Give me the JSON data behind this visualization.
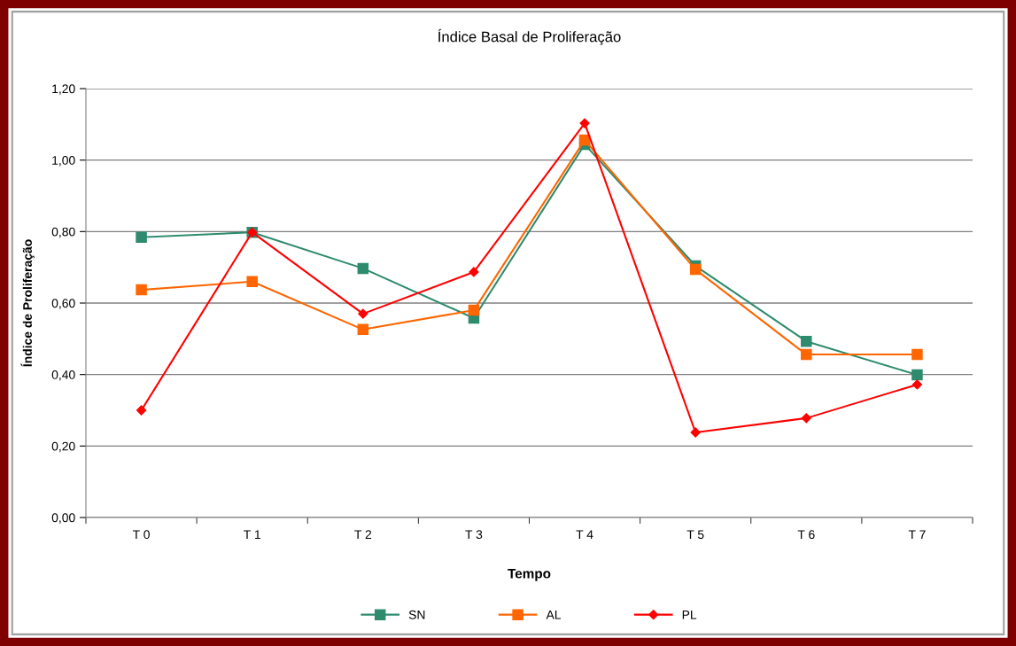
{
  "chart_data": {
    "type": "line",
    "title": "Índice Basal de Proliferação",
    "xlabel": "Tempo",
    "ylabel": "Índice de Proliferação",
    "categories": [
      "T 0",
      "T 1",
      "T 2",
      "T 3",
      "T 4",
      "T 5",
      "T 6",
      "T 7"
    ],
    "series": [
      {
        "name": "SN",
        "color": "#2e8b6e",
        "marker": "square",
        "values": [
          0.784,
          0.798,
          0.697,
          0.558,
          1.044,
          0.704,
          0.493,
          0.399
        ]
      },
      {
        "name": "AL",
        "color": "#ff6600",
        "marker": "square",
        "values": [
          0.637,
          0.66,
          0.526,
          0.58,
          1.056,
          0.694,
          0.456,
          0.456
        ]
      },
      {
        "name": "PL",
        "color": "#ff0000",
        "marker": "diamond",
        "values": [
          0.3,
          0.798,
          0.57,
          0.687,
          1.103,
          0.238,
          0.278,
          0.372
        ]
      }
    ],
    "ylim": [
      0,
      1.2
    ],
    "yticks": [
      {
        "value": 0,
        "label": "0,00"
      },
      {
        "value": 0.2,
        "label": "0,20"
      },
      {
        "value": 0.4,
        "label": "0,40"
      },
      {
        "value": 0.6,
        "label": "0,60"
      },
      {
        "value": 0.8,
        "label": "0,80"
      },
      {
        "value": 1.0,
        "label": "1,00"
      },
      {
        "value": 1.2,
        "label": "1,20"
      }
    ],
    "grid": "y",
    "legend": "bottom",
    "line_style": "solid"
  }
}
